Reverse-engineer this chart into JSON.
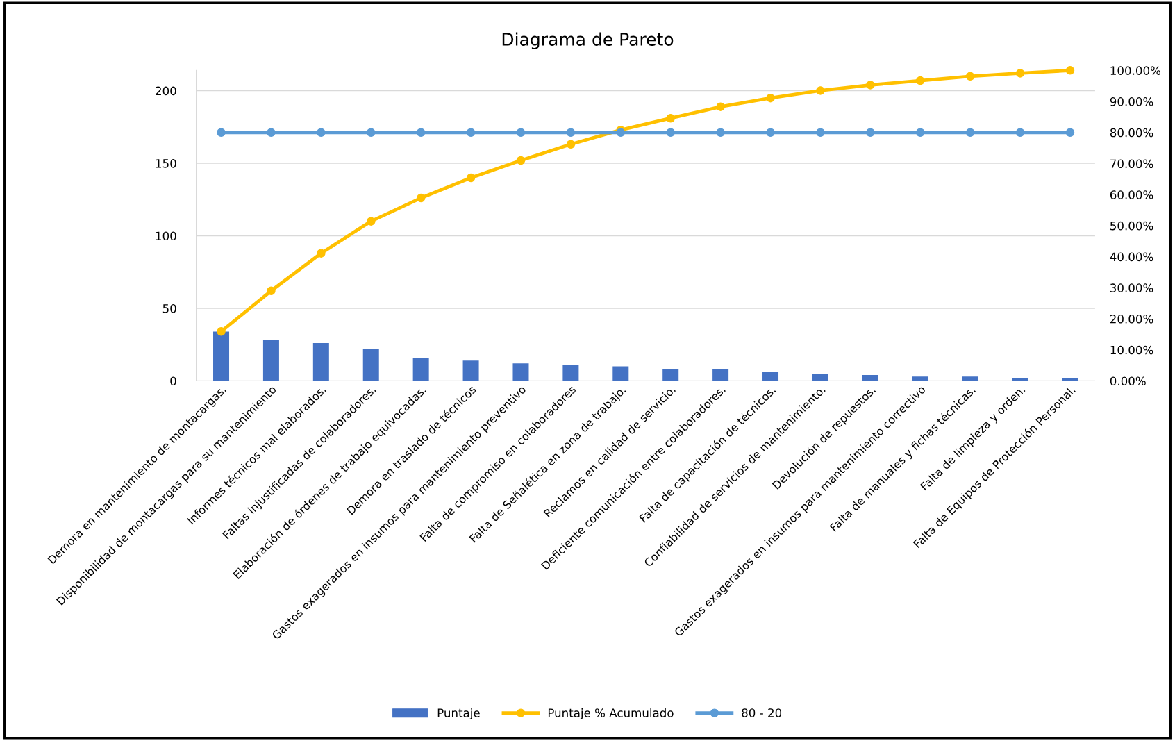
{
  "chart_data": {
    "type": "bar",
    "title": "Diagrama de Pareto",
    "categories": [
      "Demora en mantenimiento de montacargas.",
      "Disponibilidad de montacargas para su mantenimiento",
      "Informes técnicos mal elaborados.",
      "Faltas injustificadas de colaboradores.",
      "Elaboración de órdenes de trabajo equivocadas.",
      "Demora en traslado de técnicos",
      "Gastos exagerados en insumos para mantenimiento preventivo",
      "Falta de compromiso en colaboradores",
      "Falta de Señalética en zona de trabajo.",
      "Reclamos en calidad de servicio.",
      "Deficiente comunicación entre colaboradores.",
      "Falta de capacitación de técnicos.",
      "Confiabilidad de servicios de mantenimiento.",
      "Devolución de repuestos.",
      "Gastos exagerados en insumos para mantenimiento correctivo",
      "Falta de manuales y fichas técnicas.",
      "Falta de limpieza y orden.",
      "Falta de Equipos de Protección Personal."
    ],
    "series": [
      {
        "name": "Puntaje",
        "color": "#4472c4",
        "values": [
          34,
          28,
          26,
          22,
          16,
          14,
          12,
          11,
          10,
          8,
          8,
          6,
          5,
          4,
          3,
          3,
          2,
          2
        ]
      },
      {
        "name": "Puntaje % Acumulado",
        "type": "line",
        "axis": "y2",
        "color": "#ffc000",
        "marker": "circle",
        "values": [
          15.9,
          29.0,
          41.1,
          51.4,
          58.9,
          65.4,
          71.0,
          76.2,
          80.8,
          84.6,
          88.3,
          91.1,
          93.5,
          95.3,
          96.7,
          98.1,
          99.1,
          100
        ]
      },
      {
        "name": "80 - 20",
        "type": "line",
        "axis": "y2",
        "color": "#5b9bd5",
        "marker": "circle",
        "values": [
          80,
          80,
          80,
          80,
          80,
          80,
          80,
          80,
          80,
          80,
          80,
          80,
          80,
          80,
          80,
          80,
          80,
          80
        ]
      }
    ],
    "ylim": [
      0,
      214
    ],
    "yticks": [
      0,
      50,
      100,
      150,
      200
    ],
    "y2lim": [
      0,
      100
    ],
    "y2ticks": [
      {
        "value": 0,
        "label": "0.00%"
      },
      {
        "value": 10,
        "label": "10.00%"
      },
      {
        "value": 20,
        "label": "20.00%"
      },
      {
        "value": 30,
        "label": "30.00%"
      },
      {
        "value": 40,
        "label": "40.00%"
      },
      {
        "value": 50,
        "label": "50.00%"
      },
      {
        "value": 60,
        "label": "60.00%"
      },
      {
        "value": 70,
        "label": "70.00%"
      },
      {
        "value": 80,
        "label": "80.00%"
      },
      {
        "value": 90,
        "label": "90.00%"
      },
      {
        "value": 100,
        "label": "100.00%"
      }
    ],
    "grid": "y",
    "legend": "bottom"
  }
}
